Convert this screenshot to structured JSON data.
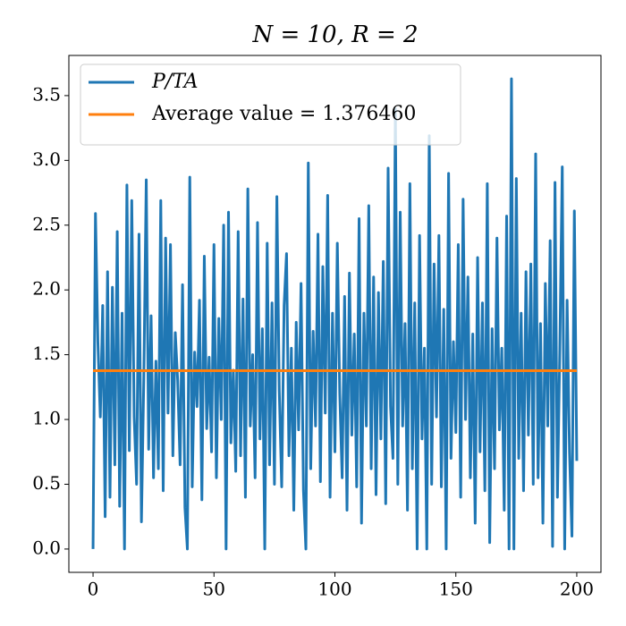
{
  "chart_data": {
    "type": "line",
    "title": "N = 10, R = 2",
    "xlim": [
      -10,
      210
    ],
    "ylim": [
      -0.18,
      3.81
    ],
    "xticks": [
      0,
      50,
      100,
      150,
      200
    ],
    "yticks": [
      {
        "value": 0,
        "label": "0.0"
      },
      0.5,
      {
        "value": 1,
        "label": "1.0"
      },
      1.5,
      {
        "value": 2,
        "label": "2.0"
      },
      2.5,
      {
        "value": 3,
        "label": "3.0"
      },
      3.5
    ],
    "legend": "upper left",
    "series": [
      {
        "name": "P/TA",
        "color": "#1f77b4",
        "x": [
          0,
          1,
          2,
          3,
          4,
          5,
          6,
          7,
          8,
          9,
          10,
          11,
          12,
          13,
          14,
          15,
          16,
          17,
          18,
          19,
          20,
          21,
          22,
          23,
          24,
          25,
          26,
          27,
          28,
          29,
          30,
          31,
          32,
          33,
          34,
          35,
          36,
          37,
          38,
          39,
          40,
          41,
          42,
          43,
          44,
          45,
          46,
          47,
          48,
          49,
          50,
          51,
          52,
          53,
          54,
          55,
          56,
          57,
          58,
          59,
          60,
          61,
          62,
          63,
          64,
          65,
          66,
          67,
          68,
          69,
          70,
          71,
          72,
          73,
          74,
          75,
          76,
          77,
          78,
          79,
          80,
          81,
          82,
          83,
          84,
          85,
          86,
          87,
          88,
          89,
          90,
          91,
          92,
          93,
          94,
          95,
          96,
          97,
          98,
          99,
          100,
          101,
          102,
          103,
          104,
          105,
          106,
          107,
          108,
          109,
          110,
          111,
          112,
          113,
          114,
          115,
          116,
          117,
          118,
          119,
          120,
          121,
          122,
          123,
          124,
          125,
          126,
          127,
          128,
          129,
          130,
          131,
          132,
          133,
          134,
          135,
          136,
          137,
          138,
          139,
          140,
          141,
          142,
          143,
          144,
          145,
          146,
          147,
          148,
          149,
          150,
          151,
          152,
          153,
          154,
          155,
          156,
          157,
          158,
          159,
          160,
          161,
          162,
          163,
          164,
          165,
          166,
          167,
          168,
          169,
          170,
          171,
          172,
          173,
          174,
          175,
          176,
          177,
          178,
          179,
          180,
          181,
          182,
          183,
          184,
          185,
          186,
          187,
          188,
          189,
          190,
          191,
          192,
          193,
          194,
          195,
          196,
          197,
          198,
          199,
          200
        ],
        "values": [
          0,
          2.59,
          1.6,
          1.02,
          1.88,
          0.25,
          2.14,
          0.4,
          2.02,
          0.65,
          2.45,
          0.33,
          1.82,
          0.0,
          2.81,
          0.76,
          2.69,
          1.02,
          0.5,
          2.43,
          0.21,
          1.33,
          2.85,
          0.77,
          1.8,
          0.55,
          1.45,
          0.62,
          2.69,
          0.45,
          2.4,
          1.05,
          2.35,
          0.72,
          1.67,
          1.3,
          0.65,
          2.04,
          0.32,
          0.0,
          2.87,
          0.48,
          1.52,
          1.1,
          1.92,
          0.38,
          2.26,
          0.93,
          1.48,
          0.75,
          2.35,
          0.55,
          1.78,
          1.0,
          2.5,
          0.0,
          2.6,
          0.82,
          1.38,
          0.6,
          2.45,
          0.72,
          1.93,
          0.4,
          2.78,
          0.95,
          1.5,
          0.55,
          2.52,
          0.85,
          1.7,
          0.0,
          2.36,
          0.65,
          1.9,
          0.5,
          2.72,
          1.22,
          0.48,
          1.88,
          2.28,
          0.72,
          1.55,
          0.3,
          1.75,
          0.92,
          2.05,
          0.45,
          0.0,
          2.98,
          0.62,
          1.68,
          0.95,
          2.43,
          0.52,
          2.18,
          1.05,
          2.73,
          0.4,
          1.82,
          0.75,
          2.36,
          1.2,
          0.55,
          1.95,
          0.3,
          2.13,
          0.88,
          1.66,
          0.48,
          2.55,
          0.2,
          1.82,
          0.95,
          2.65,
          0.62,
          2.1,
          0.42,
          1.98,
          0.85,
          2.22,
          0.35,
          2.94,
          1.1,
          0.7,
          3.4,
          0.5,
          2.6,
          0.95,
          1.74,
          0.3,
          2.82,
          0.62,
          1.9,
          0.0,
          2.42,
          0.85,
          1.55,
          0.0,
          3.19,
          0.5,
          2.2,
          1.02,
          2.42,
          0.48,
          1.85,
          0.0,
          2.9,
          0.7,
          1.6,
          0.9,
          2.35,
          0.4,
          2.7,
          1.0,
          2.1,
          0.55,
          1.66,
          0.2,
          2.25,
          0.75,
          1.9,
          0.45,
          2.82,
          0.05,
          1.7,
          0.62,
          2.4,
          0.92,
          1.55,
          0.3,
          2.57,
          0.0,
          3.63,
          0.0,
          2.86,
          0.7,
          1.82,
          0.45,
          2.14,
          0.88,
          2.2,
          0.5,
          3.05,
          0.55,
          1.74,
          0.2,
          2.05,
          0.95,
          2.38,
          0.02,
          2.83,
          0.4,
          1.55,
          2.95,
          0.0,
          1.92,
          0.75,
          0.1,
          2.61,
          0.68
        ]
      },
      {
        "name": "Average value = 1.376460",
        "color": "#ff7f0e",
        "x": [
          0,
          200
        ],
        "values": [
          1.37646,
          1.37646
        ]
      }
    ]
  }
}
